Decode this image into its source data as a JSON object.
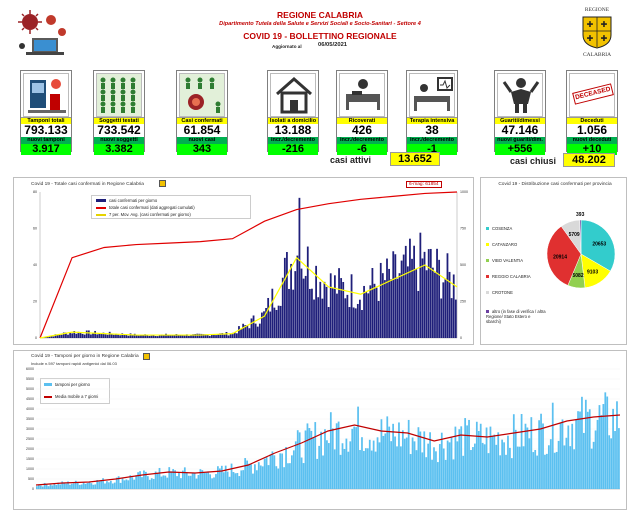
{
  "header": {
    "region": "REGIONE CALABRIA",
    "department": "Dipartimento Tutela della Salute e Servizi Sociali e Socio-Sanitari - Settore 4",
    "bulletin": "COVID 19 - BOLLETTINO REGIONALE",
    "updated_label": "Aggiornato al",
    "updated_date": "06/05/2021",
    "logo_top": "REGIONE",
    "logo_bottom": "CALABRIA"
  },
  "tiles": [
    {
      "label": "Tamponi totali",
      "value": "793.133",
      "new_label": "nuovi tamponi",
      "new_value": "3.917"
    },
    {
      "label": "Soggetti testati",
      "value": "733.542",
      "new_label": "nuovi soggetti testati",
      "new_value": "3.382"
    },
    {
      "label": "Casi confermati",
      "value": "61.854",
      "new_label": "nuovi casi",
      "new_value": "343"
    },
    {
      "label": "Isolati a domicilio",
      "value": "13.188",
      "new_label": "incr./decremento",
      "new_value": "-216"
    },
    {
      "label": "Ricoverati",
      "value": "426",
      "new_label": "incr./decremento",
      "new_value": "-6"
    },
    {
      "label": "Terapia intensiva",
      "value": "38",
      "new_label": "incr./decremento",
      "new_value": "-1"
    },
    {
      "label": "Guariti/dimessi",
      "value": "47.146",
      "new_label": "nuovi guariti/dim.",
      "new_value": "+556"
    },
    {
      "label": "Deceduti",
      "value": "1.056",
      "new_label": "nuovi deceduti",
      "new_value": "+10"
    }
  ],
  "totals": {
    "active_label": "casi attivi",
    "active_value": "13.652",
    "closed_label": "casi chiusi",
    "closed_value": "48.202",
    "deceased_stamp": "DECEASED"
  },
  "chart_data": [
    {
      "type": "bar",
      "title": "Covid 19 - Totale casi confermati in Regione Calabria",
      "annotation": "6-mag: 61854",
      "legend": [
        "casi confermati per giorno",
        "totale casi confermati (dati aggregati cumulati)",
        "7 per. Mov. Avg. (casi confermati per giorno)"
      ],
      "left_axis": {
        "ticks": [
          0,
          20,
          40,
          60,
          80
        ]
      },
      "right_axis": {
        "ticks": [
          0,
          250,
          500,
          750,
          1000
        ]
      },
      "series": [
        {
          "name": "totale casi confermati (dati aggregati cumulati)",
          "values_pct": [
            0,
            55,
            62,
            64,
            65,
            66,
            68,
            80,
            88,
            92,
            95,
            97,
            99,
            100
          ]
        },
        {
          "name": "7 per. Mov. Avg. (casi confermati per giorno)",
          "values_pct": [
            0,
            4,
            3,
            2,
            2,
            2,
            3,
            15,
            55,
            35,
            30,
            40,
            50,
            35
          ]
        }
      ],
      "colors": {
        "bars": "#1f1f7a",
        "cumulative": "#e00000",
        "moving_avg": "#ffff00"
      }
    },
    {
      "type": "pie",
      "title": "Covid 19 - Distribuzione casi confermati per provincia",
      "slices": [
        {
          "name": "COSENZA",
          "value": 20653,
          "color": "#33cccc"
        },
        {
          "name": "CATANZARO",
          "value": 9103,
          "color": "#ffff00"
        },
        {
          "name": "VIBO VALENTIA",
          "value": 5082,
          "color": "#92d050"
        },
        {
          "name": "REGGIO CALABRIA",
          "value": 20914,
          "color": "#e03030"
        },
        {
          "name": "CROTONE",
          "value": 5709,
          "color": "#d9d9d9"
        },
        {
          "name": "altro (in fase di verifica / altra Regione/ Stato Estero e sbarchi)",
          "value": 393,
          "color": "#6b3fa0"
        }
      ]
    },
    {
      "type": "bar",
      "title": "Covid 19 - Tamponi per giorno in Regione Calabria",
      "subtitle": "Include n.597 tamponi rapidi antigenici dal 06.03",
      "legend": [
        "tamponi per giorno",
        "Media mobile a 7 giorni"
      ],
      "y_ticks": [
        0,
        500,
        1000,
        1500,
        2000,
        2500,
        3000,
        3500,
        4000,
        4500,
        5000,
        5500,
        6000
      ],
      "ylim": [
        0,
        6000
      ],
      "colors": {
        "bars": "#5bc0f0",
        "moving_avg": "#c00000"
      }
    }
  ]
}
